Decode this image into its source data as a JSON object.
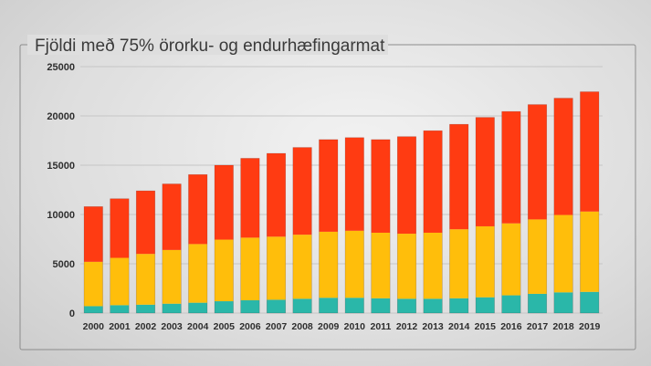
{
  "chart_data": {
    "type": "bar",
    "stacked": true,
    "title": "Fjöldi með 75% örorku- og endurhæfingarmat",
    "categories": [
      "2000",
      "2001",
      "2002",
      "2003",
      "2004",
      "2005",
      "2006",
      "2007",
      "2008",
      "2009",
      "2010",
      "2011",
      "2012",
      "2013",
      "2014",
      "2015",
      "2016",
      "2017",
      "2018",
      "2019"
    ],
    "series": [
      {
        "color": "#2ab7a9",
        "values": [
          700,
          800,
          850,
          950,
          1050,
          1200,
          1300,
          1350,
          1450,
          1550,
          1550,
          1500,
          1450,
          1450,
          1500,
          1600,
          1800,
          1950,
          2100,
          2150
        ]
      },
      {
        "color": "#ffbe0b",
        "values": [
          4500,
          4800,
          5150,
          5450,
          5950,
          6250,
          6350,
          6400,
          6500,
          6700,
          6800,
          6650,
          6600,
          6700,
          7000,
          7200,
          7300,
          7550,
          7850,
          8150
        ]
      },
      {
        "color": "#ff3b12",
        "values": [
          5600,
          6000,
          6400,
          6700,
          7050,
          7550,
          8050,
          8450,
          8850,
          9350,
          9450,
          9450,
          9850,
          10350,
          10650,
          11050,
          11350,
          11650,
          11850,
          12150
        ]
      }
    ],
    "yticks": [
      "0",
      "5000",
      "10000",
      "15000",
      "20000",
      "25000"
    ],
    "ylim": [
      0,
      25000
    ],
    "xlabel": "",
    "ylabel": "",
    "grid": true,
    "legend": "none",
    "colors": {
      "background": "#dcdcdc",
      "gridline": "#c6c6c6",
      "text": "#2e2e2e"
    }
  }
}
